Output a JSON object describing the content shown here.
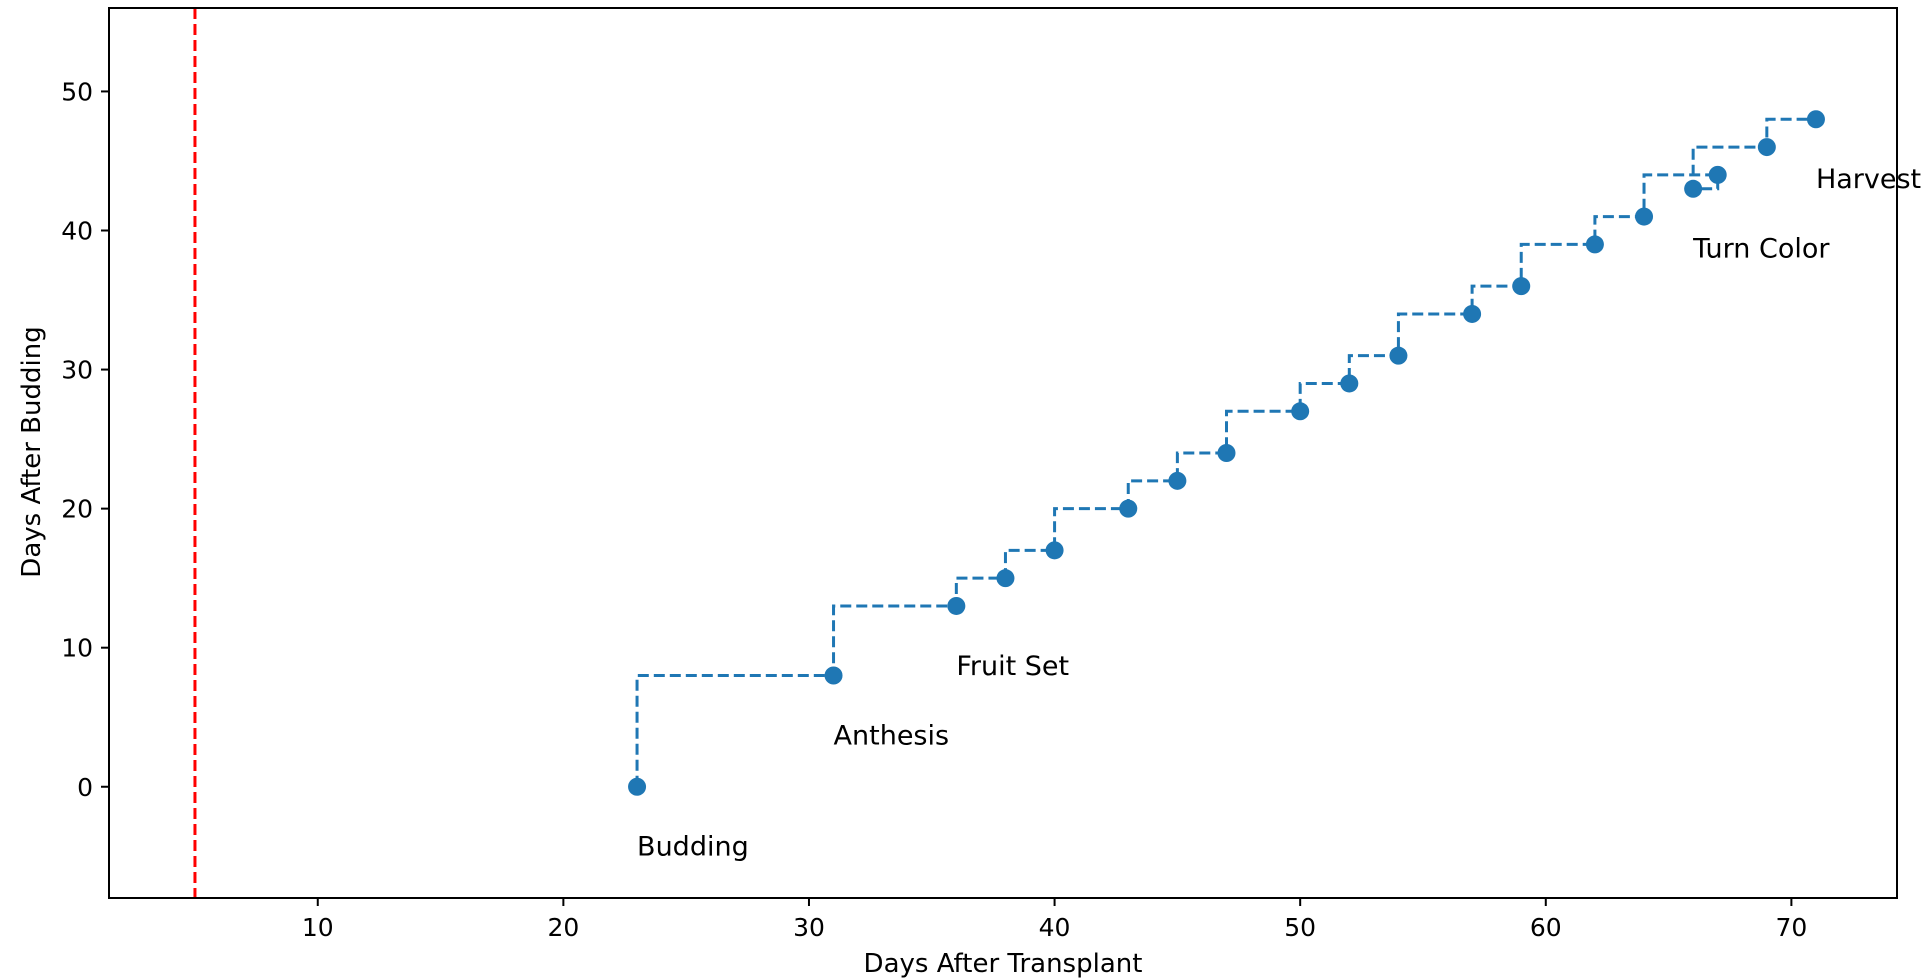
{
  "chart_data": {
    "type": "line",
    "title": "",
    "xlabel": "Days After Transplant",
    "ylabel": "Days After Budding",
    "xlim": [
      1.5,
      74.3
    ],
    "ylim": [
      -8,
      56
    ],
    "xticks": [
      10,
      20,
      30,
      40,
      50,
      60,
      70
    ],
    "yticks": [
      0,
      10,
      20,
      30,
      40,
      50
    ],
    "grid": false,
    "series": [
      {
        "style": "steps-pre, dashed line with circle markers",
        "color": "#1f77b4",
        "x": [
          23,
          31,
          36,
          38,
          40,
          43,
          45,
          47,
          50,
          52,
          54,
          57,
          59,
          62,
          64,
          67,
          66,
          69,
          71
        ],
        "y": [
          0,
          8,
          13,
          15,
          17,
          20,
          22,
          24,
          27,
          29,
          31,
          34,
          36,
          39,
          41,
          44,
          43,
          46,
          48
        ]
      }
    ],
    "vertical_line": {
      "x": 5,
      "color": "#ff0000",
      "style": "dashed"
    },
    "annotations": [
      {
        "text": "Budding",
        "x": 23,
        "y": -4.3
      },
      {
        "text": "Anthesis",
        "x": 31,
        "y": 3.7
      },
      {
        "text": "Fruit Set",
        "x": 36,
        "y": 8.7
      },
      {
        "text": "Turn Color",
        "x": 66,
        "y": 38.7
      },
      {
        "text": "Harvest",
        "x": 71,
        "y": 43.7
      }
    ]
  }
}
